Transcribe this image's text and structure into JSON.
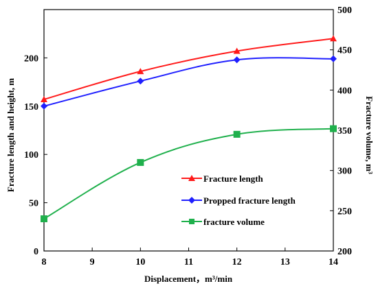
{
  "chart_data": {
    "type": "line",
    "x": [
      8,
      10,
      12,
      14
    ],
    "xlabel": "Displacement，m³/min",
    "ylabel_left": "Fracture length and height, m",
    "ylabel_right": "Fracture volume, m³",
    "xlim": [
      8,
      14
    ],
    "xticks": [
      "8",
      "9",
      "10",
      "11",
      "12",
      "13",
      "14"
    ],
    "ylim_left": [
      0,
      250
    ],
    "yticks_left": [
      "0",
      "50",
      "100",
      "150",
      "200"
    ],
    "ylim_right": [
      200,
      500
    ],
    "yticks_right": [
      "200",
      "250",
      "300",
      "350",
      "400",
      "450",
      "500"
    ],
    "grid": false,
    "legend_position": "center-right",
    "series": [
      {
        "name": "Fracture length",
        "axis": "left",
        "values": [
          157,
          186,
          207,
          220
        ],
        "color": "#ff1a1a",
        "marker": "triangle"
      },
      {
        "name": "Propped fracture length",
        "axis": "left",
        "values": [
          150,
          176,
          198,
          199
        ],
        "color": "#1f1fff",
        "marker": "diamond"
      },
      {
        "name": "fracture volume",
        "axis": "right",
        "values": [
          240,
          310,
          345,
          352
        ],
        "color": "#1fb04c",
        "marker": "square"
      }
    ]
  }
}
